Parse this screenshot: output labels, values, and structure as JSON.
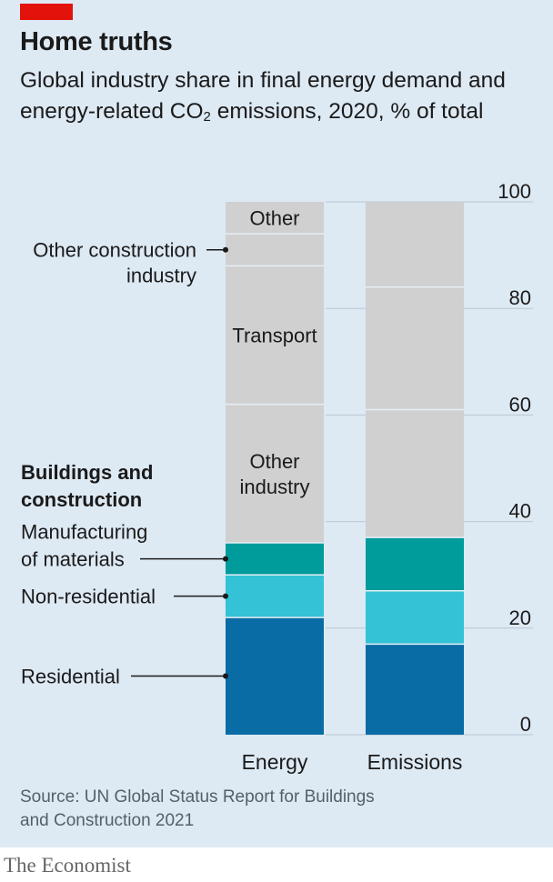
{
  "header": {
    "title": "Home truths",
    "subtitle_parts": [
      "Global industry share in final energy demand and energy-related CO",
      "2",
      " emissions, 2020, % of total"
    ]
  },
  "footer": {
    "source": "Source: UN Global Status Report for Buildings and Construction 2021",
    "brand": "The Economist"
  },
  "colors": {
    "panel_bg": "#dde9f3",
    "accent_red": "#e3120b",
    "residential": "#0a6ca4",
    "non_residential": "#33c2d6",
    "manufacturing": "#009b9b",
    "grey": "#d0d0d0",
    "divider": "#e6eef5"
  },
  "chart_data": {
    "type": "bar",
    "stacked": true,
    "categories": [
      "Energy",
      "Emissions"
    ],
    "ylim": [
      0,
      100
    ],
    "yticks": [
      "0",
      "20",
      "40",
      "60",
      "80",
      "100"
    ],
    "grid": true,
    "group_label": "Buildings and construction",
    "series": [
      {
        "name": "Residential",
        "values": [
          22,
          17
        ],
        "color": "#0a6ca4"
      },
      {
        "name": "Non-residential",
        "values": [
          8,
          10
        ],
        "color": "#33c2d6"
      },
      {
        "name": "Manufacturing of materials",
        "values": [
          6,
          10
        ],
        "color": "#009b9b"
      },
      {
        "name": "Other industry",
        "values": [
          26,
          24
        ],
        "color": "#d0d0d0"
      },
      {
        "name": "Transport",
        "values": [
          26,
          23
        ],
        "color": "#d0d0d0"
      },
      {
        "name": "Other construction industry",
        "values": [
          6,
          0
        ],
        "color": "#d0d0d0"
      },
      {
        "name": "Other",
        "values": [
          6,
          16
        ],
        "color": "#d0d0d0"
      }
    ],
    "inbar_labels": [
      {
        "series": "Other",
        "text": "Other"
      },
      {
        "series": "Transport",
        "text": "Transport"
      },
      {
        "series": "Other industry",
        "lines": [
          "Other",
          "industry"
        ]
      }
    ],
    "left_labels": [
      {
        "series": "Other construction industry",
        "lines": [
          "Other construction",
          "industry"
        ]
      },
      {
        "series": "Manufacturing of materials",
        "lines": [
          "Manufacturing",
          "of materials"
        ]
      },
      {
        "series": "Non-residential",
        "lines": [
          "Non-residential"
        ]
      },
      {
        "series": "Residential",
        "lines": [
          "Residential"
        ]
      }
    ]
  }
}
